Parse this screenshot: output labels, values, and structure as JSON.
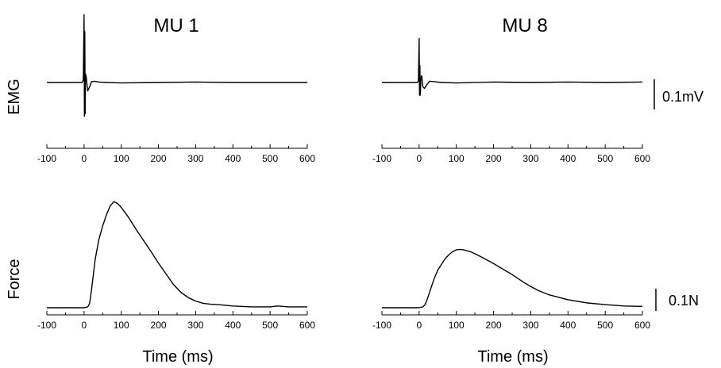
{
  "figure": {
    "columns": [
      {
        "id": "mu1",
        "title": "MU 1"
      },
      {
        "id": "mu8",
        "title": "MU 8"
      }
    ],
    "row_labels": {
      "emg": "EMG",
      "force": "Force"
    },
    "scale_bars": {
      "emg": "0.1mV",
      "force": "0.1N"
    },
    "x_label": "Time (ms)"
  },
  "chart_data": [
    {
      "type": "line",
      "panel": "MU 1 EMG",
      "title": "MU 1",
      "ylabel": "EMG",
      "xlabel": "",
      "xlim": [
        -100,
        600
      ],
      "ylim": [
        -0.12,
        0.12
      ],
      "xticks": [
        -100,
        0,
        100,
        200,
        300,
        400,
        500,
        600
      ],
      "series": [
        {
          "x": [
            -100,
            -5,
            -2,
            0,
            1,
            2,
            3,
            4,
            6,
            8,
            10,
            12,
            16,
            20,
            28,
            40,
            60,
            100,
            200,
            300,
            400,
            500,
            600
          ],
          "y": [
            0,
            0,
            0.006,
            0.16,
            -0.08,
            0.12,
            -0.074,
            0.02,
            0.012,
            -0.006,
            -0.02,
            -0.016,
            -0.008,
            0.002,
            0.003,
            0.001,
            0,
            -0.001,
            0,
            0.001,
            0,
            0,
            0
          ]
        }
      ]
    },
    {
      "type": "line",
      "panel": "MU 8 EMG",
      "title": "MU 8",
      "ylabel": "",
      "xlabel": "",
      "xlim": [
        -100,
        600
      ],
      "ylim": [
        -0.12,
        0.12
      ],
      "xticks": [
        -100,
        0,
        100,
        200,
        300,
        400,
        500,
        600
      ],
      "series": [
        {
          "x": [
            -100,
            -5,
            -2,
            0,
            1,
            2,
            3,
            5,
            7,
            10,
            14,
            20,
            28,
            40,
            60,
            100,
            200,
            300,
            400,
            500,
            600
          ],
          "y": [
            0,
            0,
            0.003,
            0.104,
            -0.03,
            0.04,
            -0.03,
            0.012,
            0.016,
            -0.01,
            -0.014,
            -0.006,
            0.003,
            0.002,
            0,
            -0.001,
            0.001,
            0,
            0.001,
            0,
            0.001
          ]
        }
      ]
    },
    {
      "type": "line",
      "panel": "MU 1 Force",
      "title": "",
      "ylabel": "Force",
      "xlabel": "Time (ms)",
      "xlim": [
        -100,
        600
      ],
      "ylim": [
        0,
        0.28
      ],
      "xticks": [
        -100,
        0,
        100,
        200,
        300,
        400,
        500,
        600
      ],
      "series": [
        {
          "x": [
            -100,
            0,
            10,
            15,
            20,
            25,
            30,
            40,
            50,
            60,
            70,
            80,
            90,
            100,
            120,
            140,
            160,
            180,
            200,
            220,
            240,
            260,
            280,
            300,
            320,
            340,
            360,
            400,
            450,
            500,
            520,
            550,
            600
          ],
          "y": [
            0,
            0,
            0.002,
            0.01,
            0.04,
            0.075,
            0.11,
            0.155,
            0.185,
            0.21,
            0.23,
            0.24,
            0.236,
            0.227,
            0.204,
            0.177,
            0.152,
            0.127,
            0.101,
            0.077,
            0.053,
            0.035,
            0.023,
            0.015,
            0.01,
            0.008,
            0.007,
            0.004,
            0.002,
            0.002,
            0.004,
            0.002,
            0.002
          ]
        }
      ]
    },
    {
      "type": "line",
      "panel": "MU 8 Force",
      "title": "",
      "ylabel": "",
      "xlabel": "Time (ms)",
      "xlim": [
        -100,
        600
      ],
      "ylim": [
        0,
        0.28
      ],
      "xticks": [
        -100,
        0,
        100,
        200,
        300,
        400,
        500,
        600
      ],
      "series": [
        {
          "x": [
            -100,
            0,
            10,
            15,
            20,
            25,
            30,
            40,
            50,
            60,
            70,
            80,
            90,
            100,
            110,
            120,
            140,
            160,
            180,
            200,
            220,
            250,
            280,
            300,
            320,
            350,
            400,
            450,
            500,
            550,
            600
          ],
          "y": [
            0,
            0,
            0.002,
            0.006,
            0.015,
            0.027,
            0.04,
            0.065,
            0.085,
            0.098,
            0.111,
            0.12,
            0.127,
            0.131,
            0.132,
            0.131,
            0.126,
            0.118,
            0.109,
            0.1,
            0.09,
            0.075,
            0.058,
            0.048,
            0.039,
            0.029,
            0.018,
            0.011,
            0.007,
            0.004,
            0.003
          ]
        }
      ]
    }
  ]
}
